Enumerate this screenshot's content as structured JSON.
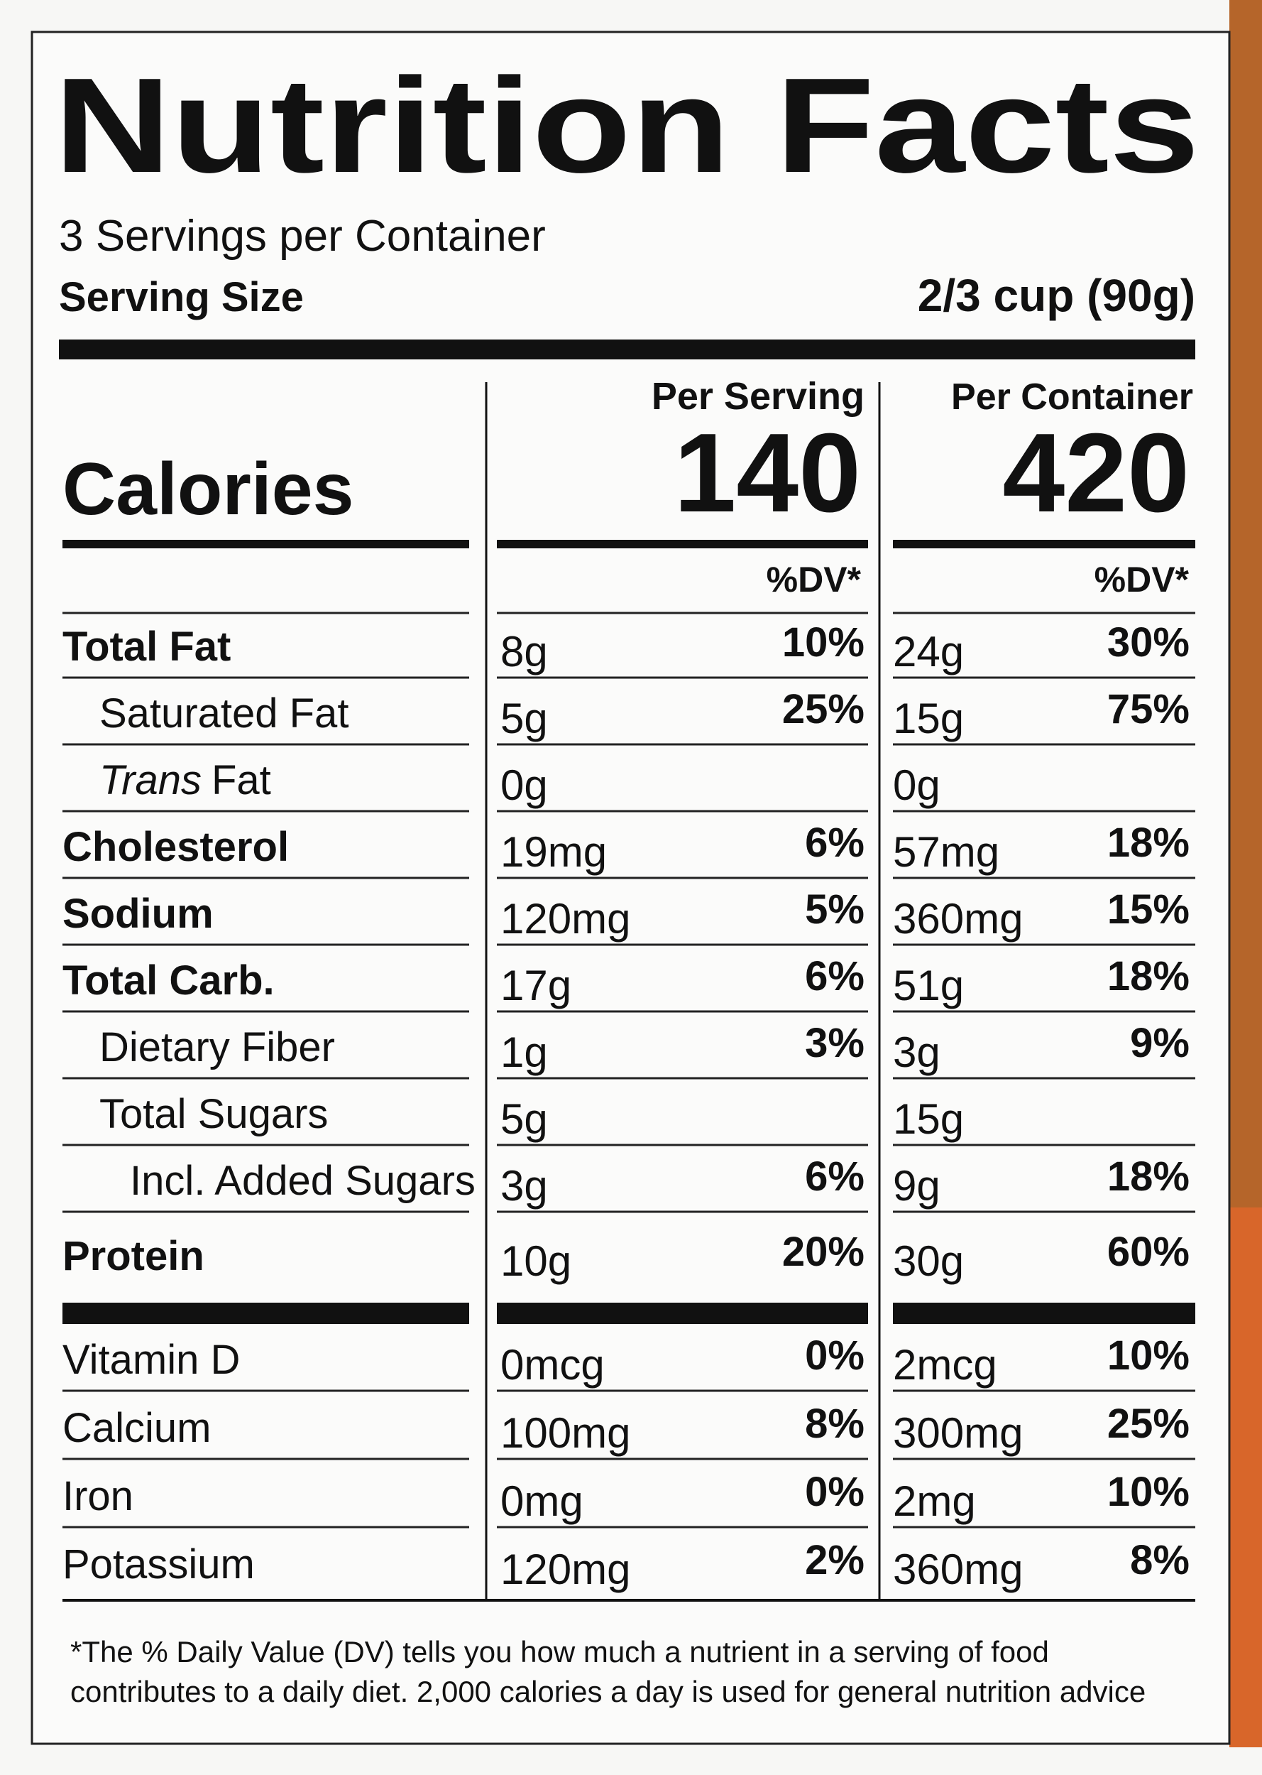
{
  "title": "Nutrition Facts",
  "servings": "3 Servings per Container",
  "serving_size": {
    "label": "Serving Size",
    "value": "2/3 cup (90g)"
  },
  "columns": [
    "Per Serving",
    "Per Container"
  ],
  "calories": {
    "label": "Calories",
    "values": [
      140,
      420
    ]
  },
  "dv_header": [
    "%DV*",
    "%DV*"
  ],
  "nutrients": [
    {
      "label": "Total Fat",
      "bold": true,
      "indent": 0,
      "per_serving": {
        "amount": "8g",
        "dv": "10%"
      },
      "per_container": {
        "amount": "24g",
        "dv": "30%"
      }
    },
    {
      "label": "Saturated Fat",
      "bold": false,
      "indent": 1,
      "per_serving": {
        "amount": "5g",
        "dv": "25%"
      },
      "per_container": {
        "amount": "15g",
        "dv": "75%"
      }
    },
    {
      "label_italic": "Trans",
      "label": "Fat",
      "bold": false,
      "indent": 1,
      "per_serving": {
        "amount": "0g"
      },
      "per_container": {
        "amount": "0g"
      }
    },
    {
      "label": "Cholesterol",
      "bold": true,
      "indent": 0,
      "per_serving": {
        "amount": "19mg",
        "dv": "6%"
      },
      "per_container": {
        "amount": "57mg",
        "dv": "18%"
      }
    },
    {
      "label": "Sodium",
      "bold": true,
      "indent": 0,
      "per_serving": {
        "amount": "120mg",
        "dv": "5%"
      },
      "per_container": {
        "amount": "360mg",
        "dv": "15%"
      }
    },
    {
      "label": "Total Carb.",
      "bold": true,
      "indent": 0,
      "per_serving": {
        "amount": "17g",
        "dv": "6%"
      },
      "per_container": {
        "amount": "51g",
        "dv": "18%"
      }
    },
    {
      "label": "Dietary Fiber",
      "bold": false,
      "indent": 1,
      "per_serving": {
        "amount": "1g",
        "dv": "3%"
      },
      "per_container": {
        "amount": "3g",
        "dv": "9%"
      }
    },
    {
      "label": "Total Sugars",
      "bold": false,
      "indent": 1,
      "per_serving": {
        "amount": "5g"
      },
      "per_container": {
        "amount": "15g"
      }
    },
    {
      "label": "Incl. Added Sugars",
      "bold": false,
      "indent": 2,
      "per_serving": {
        "amount": "3g",
        "dv": "6%"
      },
      "per_container": {
        "amount": "9g",
        "dv": "18%"
      }
    },
    {
      "label": "Protein",
      "bold": true,
      "indent": 0,
      "per_serving": {
        "amount": "10g",
        "dv": "20%"
      },
      "per_container": {
        "amount": "30g",
        "dv": "60%"
      }
    }
  ],
  "vitamins": [
    {
      "label": "Vitamin D",
      "per_serving": {
        "amount": "0mcg",
        "dv": "0%"
      },
      "per_container": {
        "amount": "2mcg",
        "dv": "10%"
      }
    },
    {
      "label": "Calcium",
      "per_serving": {
        "amount": "100mg",
        "dv": "8%"
      },
      "per_container": {
        "amount": "300mg",
        "dv": "25%"
      }
    },
    {
      "label": "Iron",
      "per_serving": {
        "amount": "0mg",
        "dv": "0%"
      },
      "per_container": {
        "amount": "2mg",
        "dv": "10%"
      }
    },
    {
      "label": "Potassium",
      "per_serving": {
        "amount": "120mg",
        "dv": "2%"
      },
      "per_container": {
        "amount": "360mg",
        "dv": "8%"
      }
    }
  ],
  "footnote": [
    "*The % Daily Value (DV) tells you how much a nutrient in a serving of food",
    "contributes to a daily diet. 2,000 calories a day is used for general nutrition advice"
  ]
}
